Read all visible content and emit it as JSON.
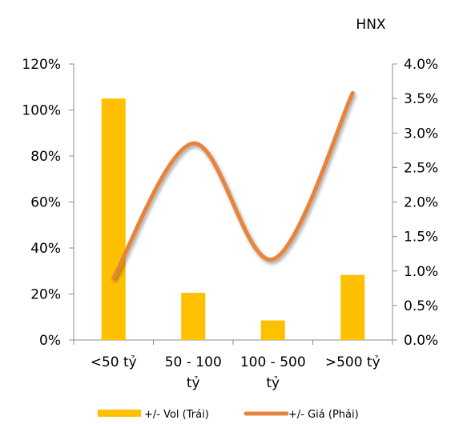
{
  "chart_data": {
    "type": "bar+line",
    "title": "HNX",
    "categories": [
      "<50 tỷ",
      "50 - 100 tỷ",
      "100 - 500 tỷ",
      ">500 tỷ"
    ],
    "series": [
      {
        "name": "+/- Vol (Trái)",
        "type": "bar",
        "axis": "left",
        "color": "#FFC000",
        "values": [
          1.05,
          0.205,
          0.085,
          0.283
        ]
      },
      {
        "name": "+/- Giá (Phải)",
        "type": "line",
        "axis": "right",
        "smooth": true,
        "color": "#E8833A",
        "values": [
          0.009,
          0.0285,
          0.0117,
          0.0358
        ]
      }
    ],
    "y_left": {
      "min": 0,
      "max": 1.2,
      "ticks": [
        "0%",
        "20%",
        "40%",
        "60%",
        "80%",
        "100%",
        "120%"
      ]
    },
    "y_right": {
      "min": 0,
      "max": 0.04,
      "ticks": [
        "0.0%",
        "0.5%",
        "1.0%",
        "1.5%",
        "2.0%",
        "2.5%",
        "3.0%",
        "3.5%",
        "4.0%"
      ]
    },
    "grid": false,
    "legend_position": "bottom"
  }
}
